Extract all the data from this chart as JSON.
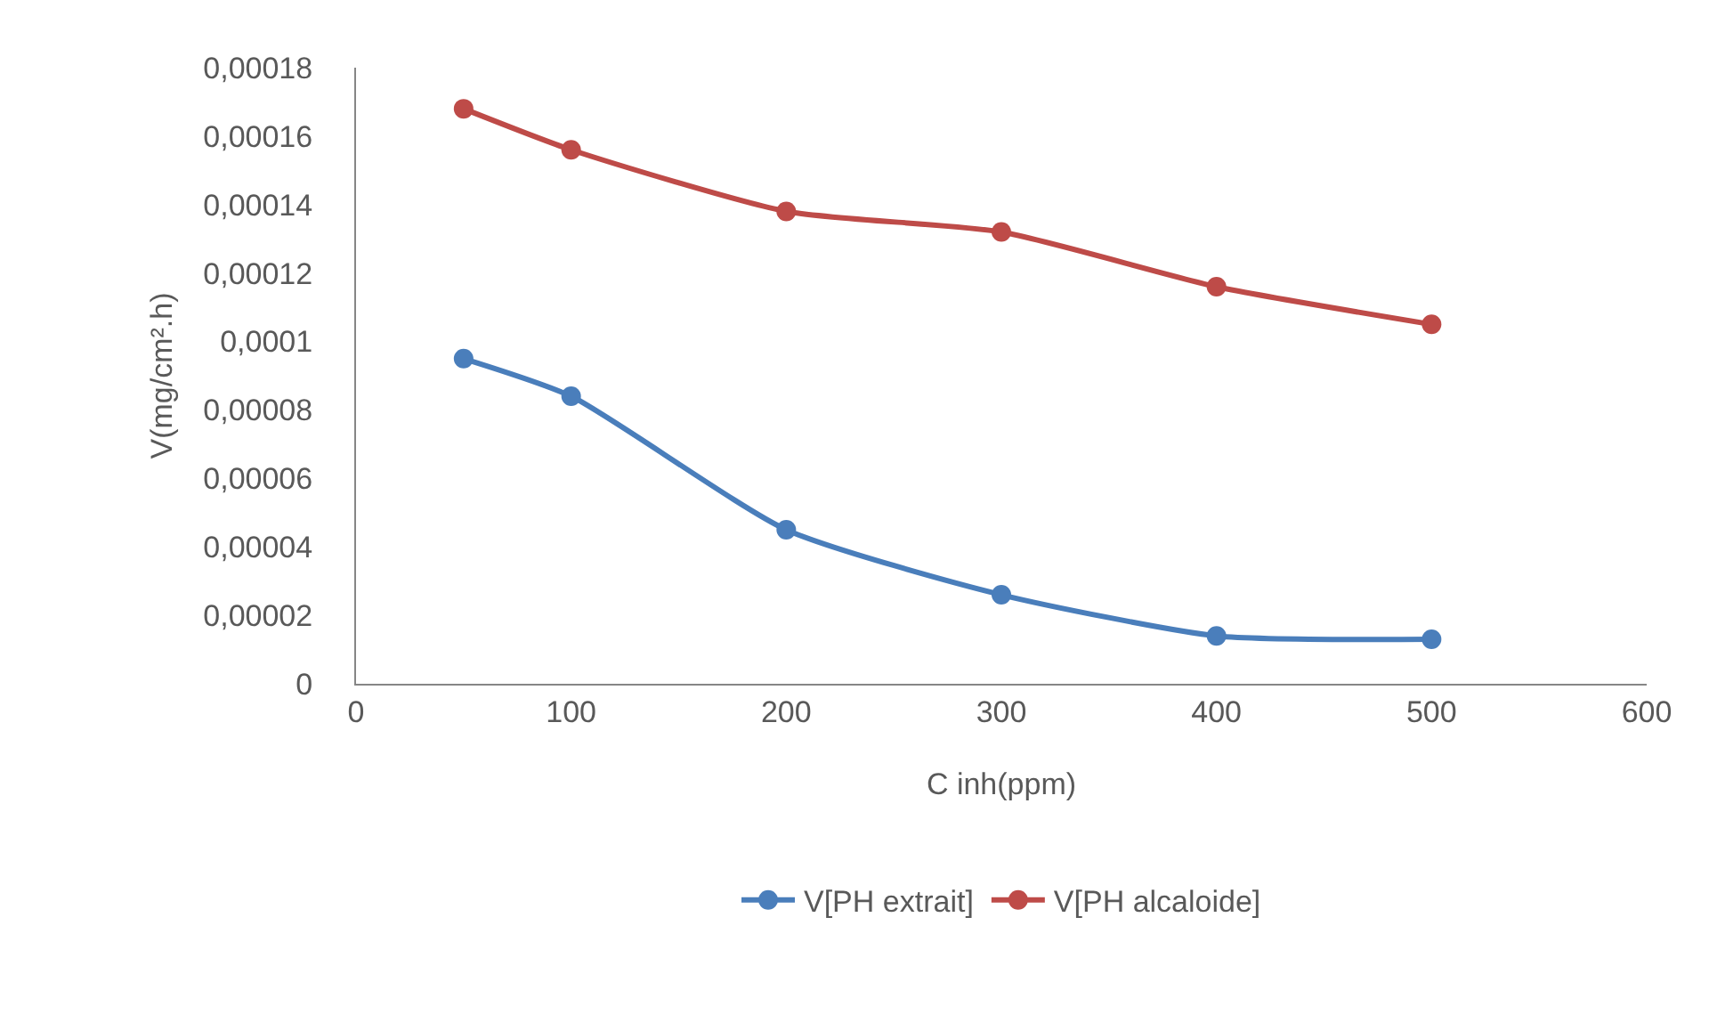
{
  "chart_data": {
    "type": "line",
    "xlabel": "C inh(ppm)",
    "ylabel": "V(mg/cm².h)",
    "x": [
      50,
      100,
      200,
      300,
      400,
      500
    ],
    "series": [
      {
        "name": "V[PH extrait]",
        "color": "#4a7ebb",
        "values": [
          9.5e-05,
          8.4e-05,
          4.5e-05,
          2.6e-05,
          1.4e-05,
          1.3e-05
        ]
      },
      {
        "name": "V[PH alcaloide]",
        "color": "#be4b48",
        "values": [
          0.000168,
          0.000156,
          0.000138,
          0.000132,
          0.000116,
          0.000105
        ]
      }
    ],
    "xlim": [
      0,
      600
    ],
    "xticks": [
      0,
      100,
      200,
      300,
      400,
      500,
      600
    ],
    "ylim": [
      0,
      0.00018
    ],
    "yticks": [
      0,
      {
        "value": 2e-05,
        "label": "0,00002"
      },
      {
        "value": 4e-05,
        "label": "0,00004"
      },
      {
        "value": 6e-05,
        "label": "0,00006"
      },
      {
        "value": 8e-05,
        "label": "0,00008"
      },
      {
        "value": 0.0001,
        "label": "0,0001"
      },
      {
        "value": 0.00012,
        "label": "0,00012"
      },
      {
        "value": 0.00014,
        "label": "0,00014"
      },
      {
        "value": 0.00016,
        "label": "0,00016"
      },
      {
        "value": 0.00018,
        "label": "0,00018"
      }
    ],
    "grid": false,
    "legend": "bottom",
    "marker": "circle",
    "line_style": "solid"
  }
}
